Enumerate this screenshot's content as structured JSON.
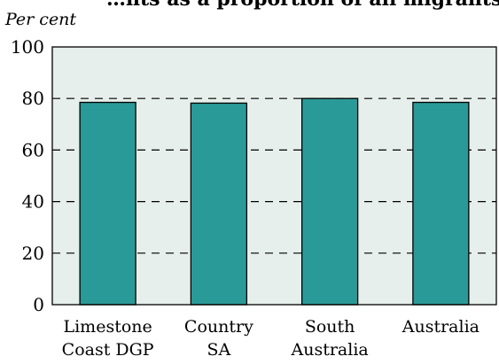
{
  "chart_data": {
    "type": "bar",
    "title": "…nts as a proportion of all migrants,",
    "unit_label": "Per cent",
    "categories": [
      [
        "Limestone",
        "Coast DGP"
      ],
      [
        "Country",
        "SA"
      ],
      [
        "South",
        "Australia"
      ],
      [
        "Australia"
      ]
    ],
    "values": [
      78.5,
      78.2,
      80.0,
      78.5
    ],
    "ylim": [
      0,
      100
    ],
    "yticks": [
      0,
      20,
      40,
      60,
      80,
      100
    ],
    "grid": "dashed horizontal",
    "xlabel": "",
    "ylabel": ""
  },
  "colors": {
    "bar": "#2a9a98",
    "plot_background": "#e6efeb",
    "grid": "#000000"
  }
}
